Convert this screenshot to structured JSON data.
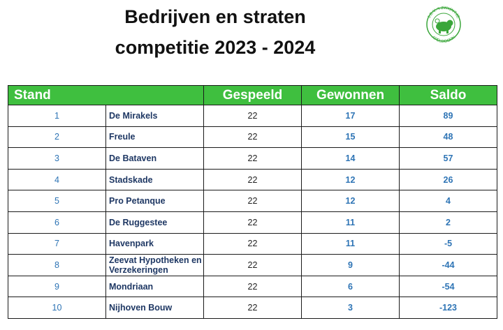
{
  "title_line1": "Bedrijven en straten",
  "title_line2": "competitie 2023 - 2024",
  "logo": {
    "top_text": "J.B.V. 't ZWIJNTJE",
    "bottom_text": "APELDOORN"
  },
  "table": {
    "headers": {
      "stand": "Stand",
      "gespeeld": "Gespeeld",
      "gewonnen": "Gewonnen",
      "saldo": "Saldo"
    },
    "rows": [
      {
        "pos": "1",
        "name": "De Mirakels",
        "played": "22",
        "won": "17",
        "saldo": "89"
      },
      {
        "pos": "2",
        "name": "Freule",
        "played": "22",
        "won": "15",
        "saldo": "48"
      },
      {
        "pos": "3",
        "name": "De Bataven",
        "played": "22",
        "won": "14",
        "saldo": "57"
      },
      {
        "pos": "4",
        "name": "Stadskade",
        "played": "22",
        "won": "12",
        "saldo": "26"
      },
      {
        "pos": "5",
        "name": "Pro Petanque",
        "played": "22",
        "won": "12",
        "saldo": "4"
      },
      {
        "pos": "6",
        "name": "De Ruggestee",
        "played": "22",
        "won": "11",
        "saldo": "2"
      },
      {
        "pos": "7",
        "name": "Havenpark",
        "played": "22",
        "won": "11",
        "saldo": "-5"
      },
      {
        "pos": "8",
        "name": "Zeevat Hypotheken en Verzekeringen",
        "played": "22",
        "won": "9",
        "saldo": "-44"
      },
      {
        "pos": "9",
        "name": "Mondriaan",
        "played": "22",
        "won": "6",
        "saldo": "-54"
      },
      {
        "pos": "10",
        "name": "Nijhoven Bouw",
        "played": "22",
        "won": "3",
        "saldo": "-123"
      }
    ]
  }
}
